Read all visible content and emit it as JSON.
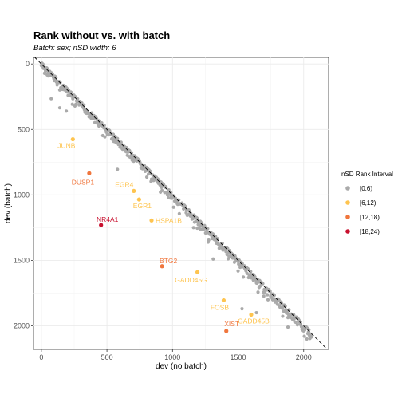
{
  "title": "Rank without vs. with batch",
  "subtitle": "Batch: sex; nSD width: 6",
  "chart_data": {
    "type": "scatter",
    "xlabel": "dev (no batch)",
    "ylabel": "dev (batch)",
    "xlim": [
      -60,
      2190
    ],
    "ylim": [
      -50,
      2180
    ],
    "y_reversed": true,
    "x_ticks": [
      0,
      500,
      1000,
      1500,
      2000
    ],
    "y_ticks": [
      0,
      500,
      1000,
      1500,
      2000
    ],
    "x_tick_labels": [
      "0",
      "500",
      "1000",
      "1500",
      "2000"
    ],
    "y_tick_labels": [
      "0",
      "500",
      "1000",
      "1500",
      "2000"
    ],
    "grid": true,
    "reference_line": "y = x (dashed)",
    "legend": {
      "title": "nSD Rank Interval",
      "placement": "right",
      "entries": [
        {
          "label": "[0,6)",
          "color": "#aaaaaa"
        },
        {
          "label": "[6,12)",
          "color": "#fec44f"
        },
        {
          "label": "[12,18)",
          "color": "#f0763d"
        },
        {
          "label": "[18,24)",
          "color": "#c8102e"
        }
      ]
    },
    "labeled_points": [
      {
        "gene": "JUNB",
        "x": 240,
        "y": 575,
        "interval": "[6,12)",
        "color": "#fec44f"
      },
      {
        "gene": "DUSP1",
        "x": 365,
        "y": 835,
        "interval": "[12,18)",
        "color": "#f0763d"
      },
      {
        "gene": "EGR4",
        "x": 705,
        "y": 970,
        "interval": "[6,12)",
        "color": "#fec44f"
      },
      {
        "gene": "EGR1",
        "x": 745,
        "y": 1035,
        "interval": "[6,12)",
        "color": "#fec44f"
      },
      {
        "gene": "NR4A1",
        "x": 455,
        "y": 1230,
        "interval": "[18,24)",
        "color": "#c8102e"
      },
      {
        "gene": "HSPA1B",
        "x": 840,
        "y": 1195,
        "interval": "[6,12)",
        "color": "#fec44f"
      },
      {
        "gene": "BTG2",
        "x": 920,
        "y": 1545,
        "interval": "[12,18)",
        "color": "#f0763d"
      },
      {
        "gene": "GADD45G",
        "x": 1190,
        "y": 1590,
        "interval": "[6,12)",
        "color": "#fec44f"
      },
      {
        "gene": "FOSB",
        "x": 1390,
        "y": 1805,
        "interval": "[6,12)",
        "color": "#fec44f"
      },
      {
        "gene": "GADD45B",
        "x": 1600,
        "y": 1915,
        "interval": "[6,12)",
        "color": "#fec44f"
      },
      {
        "gene": "XIST",
        "x": 1410,
        "y": 2040,
        "interval": "[12,18)",
        "color": "#f0763d"
      }
    ],
    "background_outliers": [
      {
        "x": 75,
        "y": 265
      },
      {
        "x": 140,
        "y": 335
      },
      {
        "x": 190,
        "y": 360
      },
      {
        "x": 580,
        "y": 805
      },
      {
        "x": 1310,
        "y": 1490
      },
      {
        "x": 1530,
        "y": 1870
      },
      {
        "x": 1640,
        "y": 1900
      },
      {
        "x": 1880,
        "y": 2010
      },
      {
        "x": 2005,
        "y": 2080
      }
    ],
    "background_series": {
      "relation": "y ≈ x",
      "x_range": [
        0,
        2060
      ],
      "interval": "[0,6)",
      "color": "#aaaaaa"
    }
  }
}
